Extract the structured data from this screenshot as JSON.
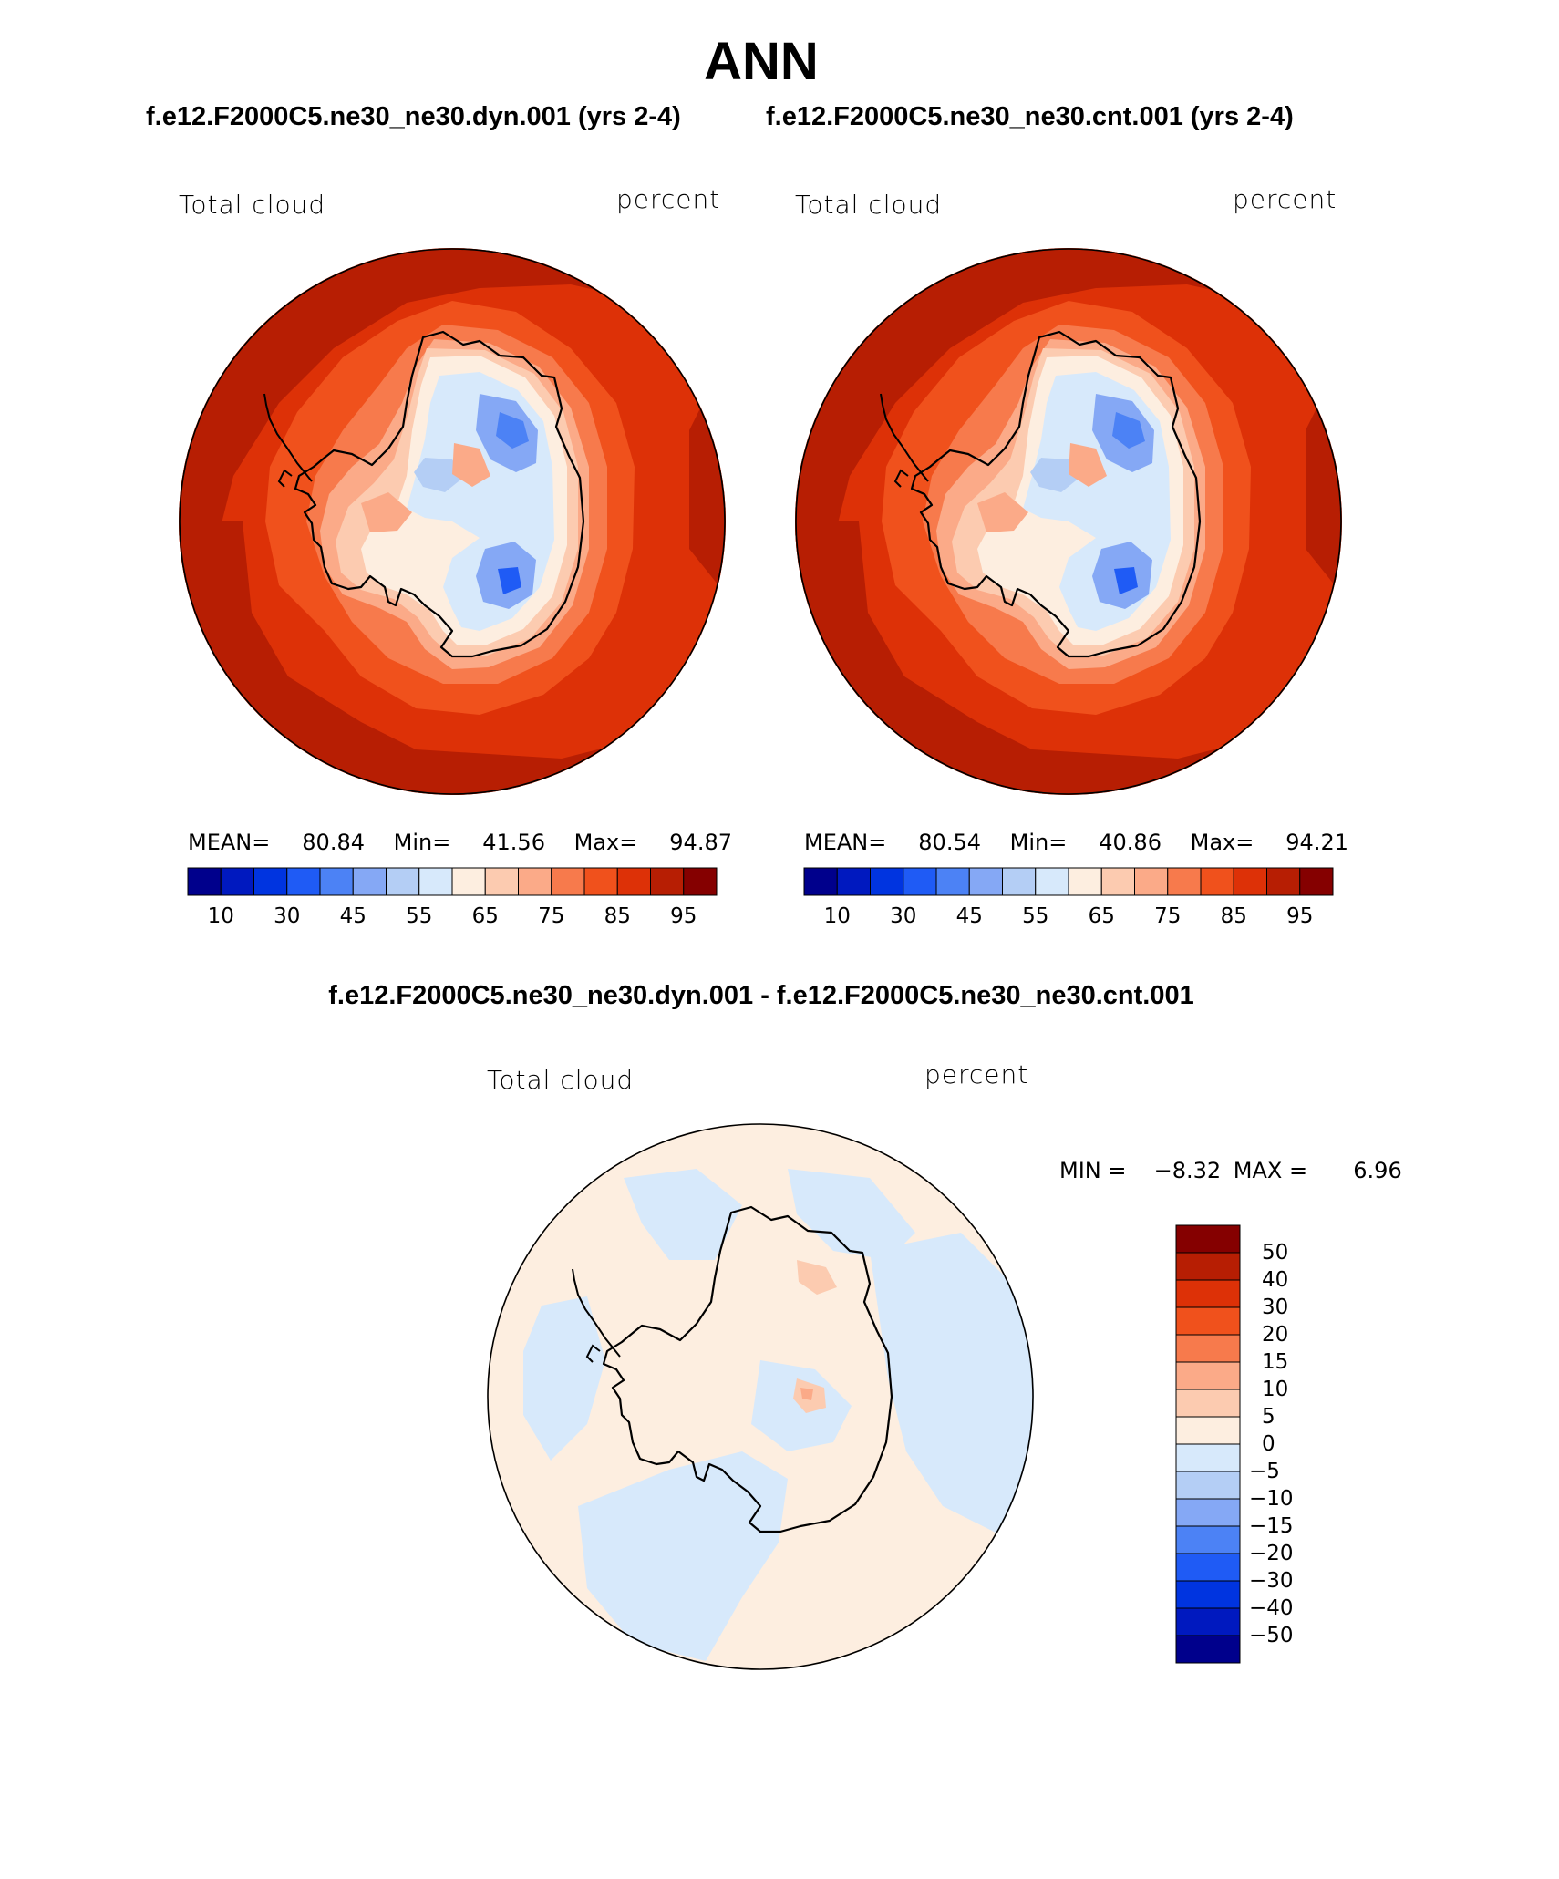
{
  "page": {
    "title": "ANN",
    "left_case_title": "f.e12.F2000C5.ne30_ne30.dyn.001 (yrs 2-4)",
    "right_case_title": "f.e12.F2000C5.ne30_ne30.cnt.001 (yrs 2-4)",
    "diff_title": "f.e12.F2000C5.ne30_ne30.dyn.001 - f.e12.F2000C5.ne30_ne30.cnt.001"
  },
  "chart_data": [
    {
      "type": "heatmap",
      "projection": "south-polar-stereographic",
      "variable_label": "Total cloud",
      "units_label": "percent",
      "stats": {
        "mean_label": "MEAN=",
        "mean": "80.84",
        "min_label": "Min=",
        "min": "41.56",
        "max_label": "Max=",
        "max": "94.87"
      },
      "colorbar": {
        "orientation": "horizontal",
        "tick_labels": [
          "10",
          "30",
          "45",
          "55",
          "65",
          "75",
          "85",
          "95"
        ],
        "colors": [
          "#00008c",
          "#0019bf",
          "#0034e0",
          "#1f5bf5",
          "#4c82f5",
          "#85a8f5",
          "#b4cef5",
          "#d7e9fb",
          "#fdeee0",
          "#fccbb0",
          "#fbaa88",
          "#f77a4c",
          "#f0511c",
          "#dd3107",
          "#b71e03",
          "#850000"
        ]
      },
      "regions": {
        "ocean_far": "95",
        "ocean_near": "85",
        "coast": "75",
        "interior": "60",
        "low_cloud": "45"
      }
    },
    {
      "type": "heatmap",
      "projection": "south-polar-stereographic",
      "variable_label": "Total cloud",
      "units_label": "percent",
      "stats": {
        "mean_label": "MEAN=",
        "mean": "80.54",
        "min_label": "Min=",
        "min": "40.86",
        "max_label": "Max=",
        "max": "94.21"
      },
      "colorbar": {
        "orientation": "horizontal",
        "tick_labels": [
          "10",
          "30",
          "45",
          "55",
          "65",
          "75",
          "85",
          "95"
        ],
        "colors": [
          "#00008c",
          "#0019bf",
          "#0034e0",
          "#1f5bf5",
          "#4c82f5",
          "#85a8f5",
          "#b4cef5",
          "#d7e9fb",
          "#fdeee0",
          "#fccbb0",
          "#fbaa88",
          "#f77a4c",
          "#f0511c",
          "#dd3107",
          "#b71e03",
          "#850000"
        ]
      },
      "regions": {
        "ocean_far": "95",
        "ocean_near": "85",
        "coast": "75",
        "interior": "60",
        "low_cloud": "45"
      }
    },
    {
      "type": "heatmap",
      "projection": "south-polar-stereographic",
      "variable_label": "Total cloud",
      "units_label": "percent",
      "stats": {
        "min_label": "MIN =",
        "min": "−8.32",
        "max_label": "MAX =",
        "max": "6.96"
      },
      "colorbar": {
        "orientation": "vertical",
        "tick_labels": [
          "50",
          "40",
          "30",
          "20",
          "15",
          "10",
          "5",
          "0",
          "−5",
          "−10",
          "−15",
          "−20",
          "−30",
          "−40",
          "−50"
        ],
        "colors": [
          "#850000",
          "#b71e03",
          "#dd3107",
          "#f0511c",
          "#f77a4c",
          "#fbaa88",
          "#fccbb0",
          "#fdeee0",
          "#d7e9fb",
          "#b4cef5",
          "#85a8f5",
          "#4c82f5",
          "#1f5bf5",
          "#0034e0",
          "#0019bf",
          "#00008c"
        ]
      },
      "regions": {
        "background": "0 to 5",
        "decrease_areas": "-5 to 0",
        "local_increase": "5 to 10",
        "local_decrease": "-10 to -5"
      }
    }
  ]
}
